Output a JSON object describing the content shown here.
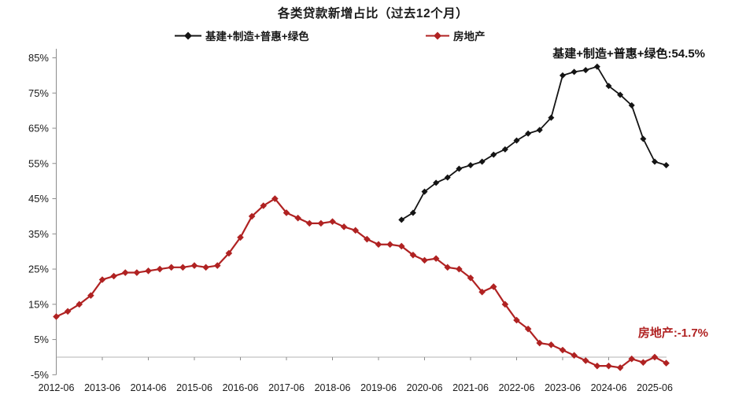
{
  "chart_data": {
    "type": "line",
    "title": "各类贷款新增占比（过去12个月）",
    "grid": "none",
    "legend_position": "top",
    "ylim": [
      -5,
      85
    ],
    "y_tick_step": 10,
    "y_tick_labels": [
      "85%",
      "75%",
      "65%",
      "55%",
      "45%",
      "35%",
      "25%",
      "15%",
      "5%",
      "-5%"
    ],
    "x_tick_labels": [
      "2012-06",
      "2013-06",
      "2014-06",
      "2015-06",
      "2016-06",
      "2017-06",
      "2018-06",
      "2019-06",
      "2020-06",
      "2021-06",
      "2022-06",
      "2023-06",
      "2024-06",
      "2025-06"
    ],
    "x_ticks_every_n_points": 4,
    "categories": [
      "2012-06",
      "2012-09",
      "2012-12",
      "2013-03",
      "2013-06",
      "2013-09",
      "2013-12",
      "2014-03",
      "2014-06",
      "2014-09",
      "2014-12",
      "2015-03",
      "2015-06",
      "2015-09",
      "2015-12",
      "2016-03",
      "2016-06",
      "2016-09",
      "2016-12",
      "2017-03",
      "2017-06",
      "2017-09",
      "2017-12",
      "2018-03",
      "2018-06",
      "2018-09",
      "2018-12",
      "2019-03",
      "2019-06",
      "2019-09",
      "2019-12",
      "2020-03",
      "2020-06",
      "2020-09",
      "2020-12",
      "2021-03",
      "2021-06",
      "2021-09",
      "2021-12",
      "2022-03",
      "2022-06",
      "2022-09",
      "2022-12",
      "2023-03",
      "2023-06",
      "2023-09",
      "2023-12",
      "2024-03",
      "2024-06",
      "2024-09",
      "2024-12",
      "2025-03",
      "2025-06",
      "2025-09"
    ],
    "series": [
      {
        "name": "基建+制造+普惠+绿色",
        "color": "#141414",
        "start_index": 30,
        "values": [
          39,
          41,
          47,
          49.5,
          51,
          53.5,
          54.5,
          55.5,
          57.5,
          59,
          61.5,
          63.5,
          64.5,
          68,
          80,
          81,
          81.5,
          82.5,
          77,
          74.5,
          71.5,
          62,
          55.5,
          54.5
        ]
      },
      {
        "name": "房地产",
        "color": "#b02222",
        "start_index": 0,
        "values": [
          11.5,
          13,
          15,
          17.5,
          22,
          23,
          24,
          24,
          24.5,
          25,
          25.5,
          25.5,
          26,
          25.5,
          26,
          29.5,
          34,
          40,
          43,
          45,
          41,
          39.5,
          38,
          38,
          38.5,
          37,
          36,
          33.5,
          32,
          32,
          31.5,
          29,
          27.5,
          28,
          25.5,
          25,
          22.5,
          18.5,
          20,
          15,
          10.5,
          8,
          4,
          3.5,
          2,
          0.5,
          -1,
          -2.5,
          -2.5,
          -3,
          -0.5,
          -1.5,
          0,
          -1.7
        ]
      }
    ],
    "annotations": [
      {
        "text": "基建+制造+普惠+绿色:54.5%",
        "color": "#141414",
        "position": "top-right"
      },
      {
        "text": "房地产:-1.7%",
        "color": "#b02222",
        "position": "right"
      }
    ]
  }
}
